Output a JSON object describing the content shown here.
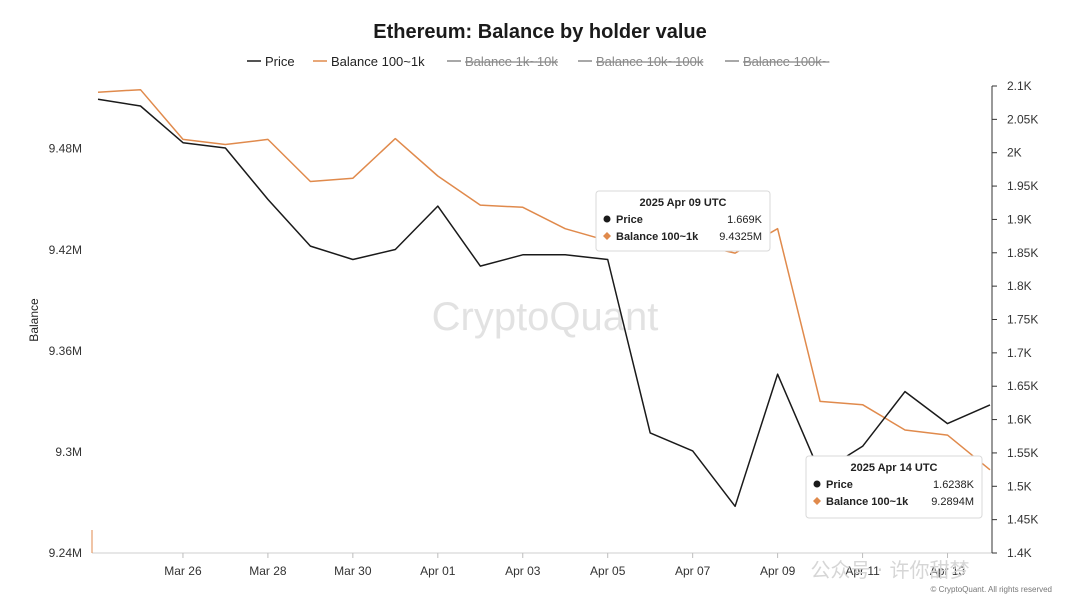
{
  "chart_data": {
    "type": "line",
    "title": "Ethereum: Balance by holder value",
    "ylabel": "Balance",
    "legend": [
      {
        "name": "Price",
        "color": "#1a1a1a",
        "enabled": true
      },
      {
        "name": "Balance 100~1k",
        "color": "#e08a4c",
        "enabled": true
      },
      {
        "name": "Balance 1k~10k",
        "color": "#8a8a8a",
        "enabled": false
      },
      {
        "name": "Balance 10k~100k",
        "color": "#8a8a8a",
        "enabled": false
      },
      {
        "name": "Balance 100k~",
        "color": "#8a8a8a",
        "enabled": false
      }
    ],
    "x_ticks": [
      "Mar 26",
      "Mar 28",
      "Mar 30",
      "Apr 01",
      "Apr 03",
      "Apr 05",
      "Apr 07",
      "Apr 09",
      "Apr 11",
      "Apr 13"
    ],
    "x": [
      "2025-03-24",
      "2025-03-25",
      "2025-03-26",
      "2025-03-27",
      "2025-03-28",
      "2025-03-29",
      "2025-03-30",
      "2025-03-31",
      "2025-04-01",
      "2025-04-02",
      "2025-04-03",
      "2025-04-04",
      "2025-04-05",
      "2025-04-06",
      "2025-04-07",
      "2025-04-08",
      "2025-04-09",
      "2025-04-10",
      "2025-04-11",
      "2025-04-12",
      "2025-04-13",
      "2025-04-14"
    ],
    "left_axis": {
      "ticks": [
        "9.24M",
        "9.3M",
        "9.36M",
        "9.42M",
        "9.48M"
      ],
      "range": [
        9.24,
        9.5172
      ],
      "unit": "M"
    },
    "right_axis": {
      "ticks": [
        "1.4K",
        "1.45K",
        "1.5K",
        "1.55K",
        "1.6K",
        "1.65K",
        "1.7K",
        "1.75K",
        "1.8K",
        "1.85K",
        "1.9K",
        "1.95K",
        "2K",
        "2.05K",
        "2.1K"
      ],
      "range": [
        1.4,
        2.1
      ],
      "unit": "K"
    },
    "series": [
      {
        "name": "Price",
        "axis": "right",
        "color": "#1a1a1a",
        "values": [
          2.08,
          2.07,
          2.015,
          2.007,
          1.93,
          1.86,
          1.84,
          1.855,
          1.92,
          1.83,
          1.847,
          1.847,
          1.84,
          1.58,
          1.553,
          1.47,
          1.668,
          1.52,
          1.56,
          1.642,
          1.594,
          1.622
        ]
      },
      {
        "name": "Balance 100~1k",
        "axis": "left",
        "color": "#e08a4c",
        "values": [
          9.5135,
          9.515,
          9.4855,
          9.4825,
          9.4855,
          9.4605,
          9.4625,
          9.486,
          9.4638,
          9.4465,
          9.4452,
          9.4325,
          9.4253,
          9.4325,
          9.4238,
          9.418,
          9.4325,
          9.33,
          9.328,
          9.313,
          9.31,
          9.2894
        ]
      }
    ],
    "tooltips": [
      {
        "title": "2025 Apr 09 UTC",
        "rows": [
          {
            "label": "Price",
            "value": "1.669K"
          },
          {
            "label": "Balance 100~1k",
            "value": "9.4325M"
          }
        ]
      },
      {
        "title": "2025 Apr 14 UTC",
        "rows": [
          {
            "label": "Price",
            "value": "1.6238K"
          },
          {
            "label": "Balance 100~1k",
            "value": "9.2894M"
          }
        ]
      }
    ],
    "grid": false,
    "legend_placement": "top-center"
  },
  "watermark": "CryptoQuant",
  "footer": "© CryptoQuant. All rights reserved",
  "overlay_text": "公众号 · 许你甜梦"
}
